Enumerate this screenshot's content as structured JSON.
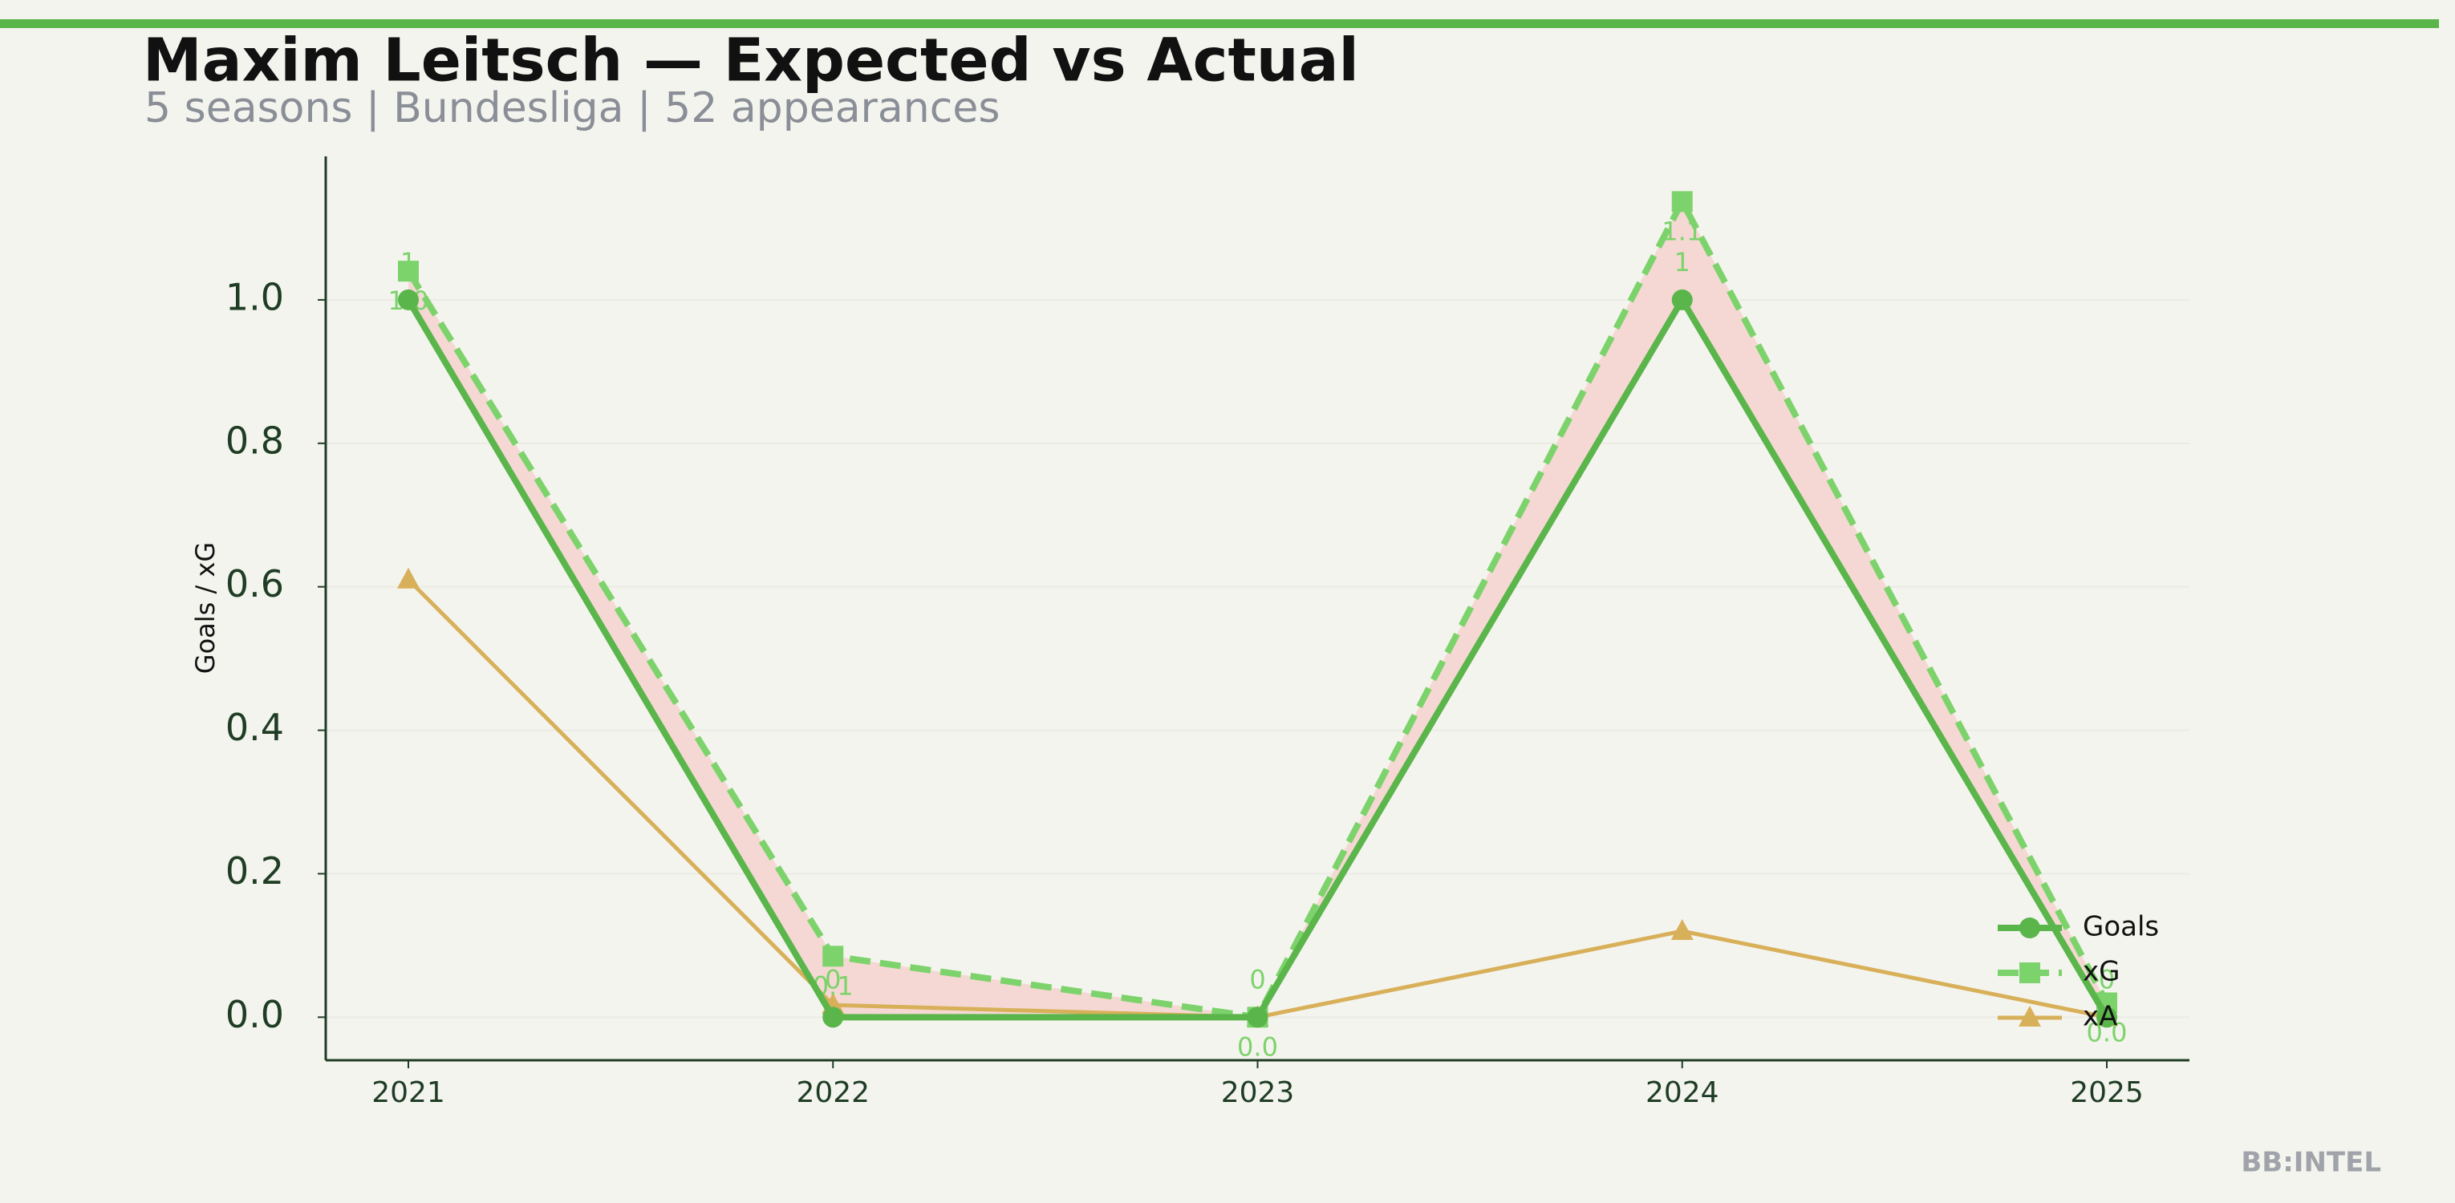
{
  "chart_data": {
    "type": "line",
    "title": "Maxim Leitsch — Expected vs Actual",
    "subtitle": "5 seasons | Bundesliga | 52 appearances",
    "y_label": "Goals / xG",
    "watermark": "BB:INTEL",
    "categories": [
      "2021",
      "2022",
      "2023",
      "2024",
      "2025"
    ],
    "series": [
      {
        "name": "Goals",
        "color": "#5ab54b",
        "marker": "circle",
        "dash": false,
        "values": [
          1.0,
          0,
          0,
          1.0,
          0
        ],
        "value_labels": [
          "1",
          "0",
          "0",
          "1",
          "0"
        ]
      },
      {
        "name": "xG",
        "color": "#7dd36b",
        "marker": "square",
        "dash": true,
        "values": [
          1.04,
          0.085,
          0,
          1.137,
          0.02
        ],
        "value_labels": [
          "1.0",
          "0.1",
          "0.0",
          "1.1",
          "0.0"
        ]
      },
      {
        "name": "xA",
        "color": "#d8b05a",
        "marker": "triangle",
        "dash": false,
        "values": [
          0.61,
          0.017,
          0,
          0.12,
          0.0
        ]
      }
    ],
    "fill_between_color": "#f5d8d3",
    "ylim": [
      -0.06,
      1.2
    ],
    "yticks": [
      {
        "value": 0,
        "label": "0.0"
      },
      0.2,
      0.4,
      0.6,
      0.8,
      {
        "value": 1,
        "label": "1.0"
      }
    ],
    "grid": true,
    "legend": "lower right"
  }
}
